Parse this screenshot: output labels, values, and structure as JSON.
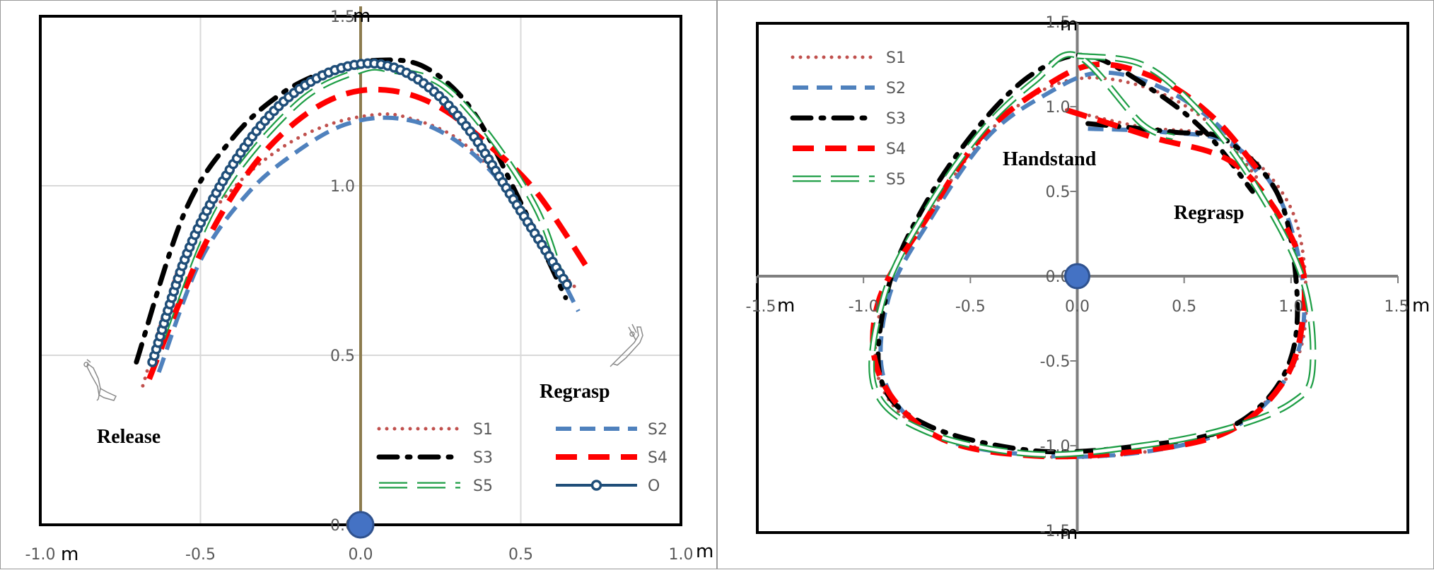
{
  "colors": {
    "S1": "#c0504d",
    "S2": "#4f81bd",
    "S3": "#000000",
    "S4": "#ff0000",
    "S5": "#1e9e46",
    "O": "#1f4e79",
    "origin": "#4472c4",
    "vertical_axis_left": "#8c7b4e",
    "grid": "#d9d9d9",
    "axis_right": "#7f7f7f"
  },
  "chart_data": [
    {
      "type": "line",
      "title": "",
      "xlabel": "m",
      "ylabel": "m",
      "xlim": [
        -1.0,
        1.0
      ],
      "ylim": [
        0.0,
        1.5
      ],
      "x_ticks": [
        "-1.0",
        "-0.5",
        "0.0",
        "0.5",
        "1.0"
      ],
      "y_ticks": [
        "0.0",
        "0.5",
        "1.0",
        "1.5"
      ],
      "grid": true,
      "legend_position": "bottom-right",
      "annotations": [
        "Release",
        "Regrasp"
      ],
      "series": [
        {
          "name": "S1",
          "x": [
            -0.68,
            -0.55,
            -0.4,
            -0.25,
            -0.1,
            0.05,
            0.15,
            0.3,
            0.45,
            0.6,
            0.67
          ],
          "y": [
            0.41,
            0.8,
            0.99,
            1.11,
            1.18,
            1.21,
            1.2,
            1.14,
            1.0,
            0.78,
            0.7
          ]
        },
        {
          "name": "S2",
          "x": [
            -0.63,
            -0.5,
            -0.35,
            -0.2,
            -0.05,
            0.1,
            0.25,
            0.4,
            0.55,
            0.68
          ],
          "y": [
            0.45,
            0.78,
            0.98,
            1.1,
            1.18,
            1.2,
            1.16,
            1.05,
            0.86,
            0.63
          ]
        },
        {
          "name": "S3",
          "x": [
            -0.7,
            -0.55,
            -0.4,
            -0.25,
            -0.1,
            0.05,
            0.2,
            0.35,
            0.5,
            0.64
          ],
          "y": [
            0.48,
            0.92,
            1.14,
            1.27,
            1.34,
            1.37,
            1.35,
            1.22,
            0.95,
            0.67
          ]
        },
        {
          "name": "S4",
          "x": [
            -0.66,
            -0.5,
            -0.35,
            -0.2,
            -0.05,
            0.1,
            0.25,
            0.4,
            0.55,
            0.72
          ],
          "y": [
            0.43,
            0.8,
            1.04,
            1.19,
            1.27,
            1.28,
            1.23,
            1.12,
            0.98,
            0.74
          ]
        },
        {
          "name": "S5",
          "x": [
            -0.62,
            -0.45,
            -0.2,
            0.0,
            0.1,
            0.25,
            0.4,
            0.55,
            0.63
          ],
          "y": [
            0.55,
            0.95,
            1.24,
            1.34,
            1.34,
            1.3,
            1.15,
            0.93,
            0.72
          ]
        },
        {
          "name": "O",
          "x": [
            -0.65,
            -0.55,
            -0.45,
            -0.35,
            -0.25,
            -0.15,
            -0.05,
            0.05,
            0.15,
            0.25,
            0.35,
            0.45,
            0.55,
            0.65
          ],
          "y": [
            0.48,
            0.78,
            0.98,
            1.13,
            1.24,
            1.31,
            1.35,
            1.36,
            1.33,
            1.26,
            1.15,
            1.0,
            0.85,
            0.7
          ]
        }
      ]
    },
    {
      "type": "line",
      "title": "",
      "xlabel": "m",
      "ylabel": "m",
      "xlim": [
        -1.5,
        1.5
      ],
      "ylim": [
        -1.5,
        1.5
      ],
      "x_ticks": [
        "-1.5",
        "-1.0",
        "-0.5",
        "0.0",
        "0.5",
        "1.0",
        "1.5"
      ],
      "y_ticks": [
        "-1.5",
        "-1.0",
        "-0.5",
        "0.0",
        "0.5",
        "1.0",
        "1.5"
      ],
      "grid": false,
      "legend_position": "top-left",
      "annotations": [
        "Handstand",
        "Regrasp"
      ],
      "series": [
        {
          "name": "S1",
          "x": [
            -0.05,
            0.3,
            0.7,
            1.0,
            1.07,
            0.98,
            0.7,
            0.3,
            -0.2,
            -0.7,
            -0.93,
            -0.9,
            -0.7,
            -0.45,
            -0.2,
            0.05,
            0.35,
            0.62,
            0.86
          ],
          "y": [
            0.98,
            0.88,
            0.8,
            0.4,
            -0.2,
            -0.6,
            -0.9,
            -1.04,
            -1.06,
            -0.92,
            -0.6,
            -0.1,
            0.35,
            0.8,
            1.07,
            1.17,
            1.1,
            0.9,
            0.55
          ]
        },
        {
          "name": "S2",
          "x": [
            0.05,
            0.4,
            0.72,
            0.95,
            1.06,
            1.0,
            0.75,
            0.35,
            -0.15,
            -0.65,
            -0.9,
            -0.88,
            -0.68,
            -0.42,
            -0.15,
            0.1,
            0.38,
            0.65,
            0.85
          ],
          "y": [
            0.87,
            0.85,
            0.78,
            0.45,
            -0.1,
            -0.55,
            -0.88,
            -1.03,
            -1.06,
            -0.95,
            -0.62,
            -0.12,
            0.35,
            0.82,
            1.07,
            1.2,
            1.12,
            0.9,
            0.6
          ]
        },
        {
          "name": "S3",
          "x": [
            0.05,
            0.45,
            0.7,
            0.95,
            1.03,
            0.95,
            0.7,
            0.3,
            -0.2,
            -0.7,
            -0.92,
            -0.88,
            -0.7,
            -0.45,
            -0.2,
            0.05,
            0.35,
            0.6,
            0.82
          ],
          "y": [
            0.9,
            0.85,
            0.8,
            0.45,
            -0.2,
            -0.62,
            -0.9,
            -1.0,
            -1.03,
            -0.88,
            -0.6,
            -0.05,
            0.45,
            0.9,
            1.2,
            1.3,
            1.1,
            0.85,
            0.5
          ]
        },
        {
          "name": "S4",
          "x": [
            -0.05,
            0.35,
            0.75,
            1.03,
            1.05,
            0.95,
            0.7,
            0.3,
            -0.2,
            -0.65,
            -0.92,
            -0.93,
            -0.7,
            -0.45,
            -0.15,
            0.1,
            0.4,
            0.65,
            0.85
          ],
          "y": [
            0.98,
            0.82,
            0.65,
            0.15,
            -0.3,
            -0.65,
            -0.92,
            -1.03,
            -1.06,
            -0.95,
            -0.6,
            -0.15,
            0.35,
            0.82,
            1.12,
            1.25,
            1.15,
            0.92,
            0.62
          ]
        },
        {
          "name": "S5",
          "x": [
            0.0,
            0.3,
            0.55,
            0.8,
            1.05,
            1.1,
            1.0,
            0.7,
            0.3,
            -0.2,
            -0.7,
            -0.95,
            -0.9,
            -0.7,
            -0.45,
            -0.2,
            0.0,
            0.3,
            0.45
          ],
          "y": [
            1.3,
            1.25,
            1.0,
            0.6,
            0.0,
            -0.55,
            -0.75,
            -0.9,
            -1.0,
            -1.05,
            -0.92,
            -0.65,
            -0.1,
            0.4,
            0.85,
            1.15,
            1.3,
            0.9,
            0.82
          ]
        }
      ]
    }
  ]
}
